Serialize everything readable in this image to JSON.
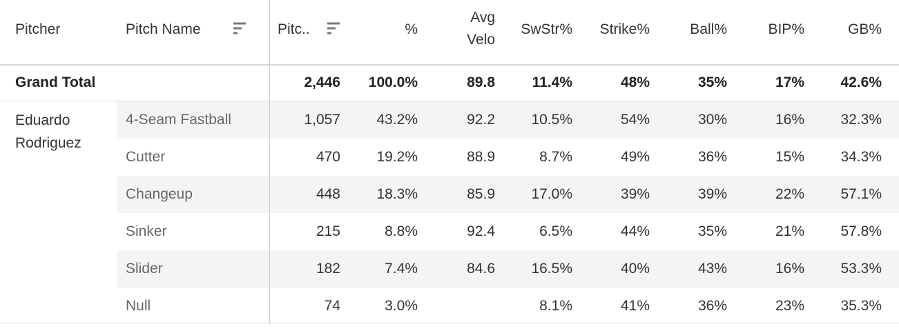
{
  "header": {
    "columns": [
      "Pitcher",
      "Pitch Name",
      "Pitc..",
      "%",
      "Avg Velo",
      "SwStr%",
      "Strike%",
      "Ball%",
      "BIP%",
      "GB%"
    ]
  },
  "grand_total": {
    "label": "Grand Total",
    "values": [
      "2,446",
      "100.0%",
      "89.8",
      "11.4%",
      "48%",
      "35%",
      "17%",
      "42.6%"
    ]
  },
  "pitcher": "Eduardo Rodriguez",
  "rows": [
    {
      "pitch": "4-Seam Fastball",
      "values": [
        "1,057",
        "43.2%",
        "92.2",
        "10.5%",
        "54%",
        "30%",
        "16%",
        "32.3%"
      ]
    },
    {
      "pitch": "Cutter",
      "values": [
        "470",
        "19.2%",
        "88.9",
        "8.7%",
        "49%",
        "36%",
        "15%",
        "34.3%"
      ]
    },
    {
      "pitch": "Changeup",
      "values": [
        "448",
        "18.3%",
        "85.9",
        "17.0%",
        "39%",
        "39%",
        "22%",
        "57.1%"
      ]
    },
    {
      "pitch": "Sinker",
      "values": [
        "215",
        "8.8%",
        "92.4",
        "6.5%",
        "44%",
        "35%",
        "21%",
        "57.8%"
      ]
    },
    {
      "pitch": "Slider",
      "values": [
        "182",
        "7.4%",
        "84.6",
        "16.5%",
        "40%",
        "43%",
        "16%",
        "53.3%"
      ]
    },
    {
      "pitch": "Null",
      "values": [
        "74",
        "3.0%",
        null,
        "8.1%",
        "41%",
        "36%",
        "23%",
        "35.3%"
      ]
    }
  ]
}
